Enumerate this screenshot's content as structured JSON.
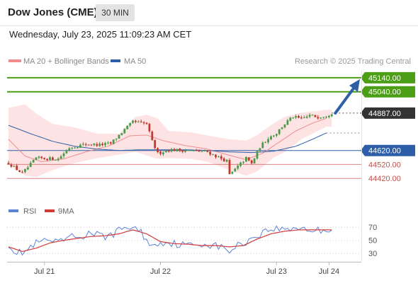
{
  "header": {
    "title": "Dow Jones (CME)",
    "timeframe": "30 MIN",
    "datetime": "Wednesday, July 23, 2025 11:09:23 AM CET"
  },
  "legend": {
    "items": [
      {
        "label": "MA 20 + Bollinger Bands",
        "color": "#f08c8c"
      },
      {
        "label": "MA 50",
        "color": "#2f5ea8"
      }
    ],
    "credit": "Research © 2025 Trading Central"
  },
  "colors": {
    "bull": "#4a9a4a",
    "bear": "#c0392b",
    "target": "#4c9e16",
    "pivot": "#2f5ea8",
    "support": "#e08080",
    "last": "#333333",
    "band_fill": "#fde3e3",
    "rsi": "#5b84d6",
    "rsi_ma": "#d23a3a",
    "arrow": "#2f5ea8"
  },
  "chart_data": [
    {
      "type": "candlestick",
      "title": "Dow Jones (CME)",
      "timeframe": "30 MIN",
      "ylim": [
        44330,
        45190
      ],
      "x_ticks": [
        {
          "label": "Jul 21",
          "index": 13
        },
        {
          "label": "Jul 22",
          "index": 55
        },
        {
          "label": "Jul 23",
          "index": 97
        },
        {
          "label": "Jul 24",
          "index": 116
        }
      ],
      "candles_count": 120,
      "anchors": [
        [
          0,
          44530
        ],
        [
          5,
          44455
        ],
        [
          10,
          44565
        ],
        [
          18,
          44560
        ],
        [
          22,
          44640
        ],
        [
          28,
          44665
        ],
        [
          33,
          44660
        ],
        [
          37,
          44670
        ],
        [
          40,
          44730
        ],
        [
          45,
          44825
        ],
        [
          50,
          44810
        ],
        [
          52,
          44685
        ],
        [
          54,
          44600
        ],
        [
          58,
          44625
        ],
        [
          65,
          44620
        ],
        [
          72,
          44610
        ],
        [
          75,
          44580
        ],
        [
          79,
          44545
        ],
        [
          80,
          44445
        ],
        [
          82,
          44485
        ],
        [
          84,
          44525
        ],
        [
          86,
          44565
        ],
        [
          88,
          44525
        ],
        [
          91,
          44645
        ],
        [
          94,
          44710
        ],
        [
          97,
          44745
        ],
        [
          99,
          44790
        ],
        [
          101,
          44830
        ],
        [
          103,
          44860
        ],
        [
          106,
          44845
        ],
        [
          109,
          44870
        ],
        [
          112,
          44860
        ],
        [
          115,
          44870
        ],
        [
          117,
          44887
        ]
      ],
      "last_index": 117,
      "levels": [
        {
          "value": 45140.0,
          "label": "45140.00",
          "kind": "target"
        },
        {
          "value": 45040.0,
          "label": "45040.00",
          "kind": "target"
        },
        {
          "value": 44887.0,
          "label": "44887.00",
          "kind": "last"
        },
        {
          "value": 44620.0,
          "label": "44620.00",
          "kind": "pivot"
        },
        {
          "value": 44520.0,
          "label": "44520.00",
          "kind": "support"
        },
        {
          "value": 44420.0,
          "label": "44420.00",
          "kind": "support"
        }
      ],
      "ma50_anchors": [
        [
          0,
          44800
        ],
        [
          8,
          44740
        ],
        [
          16,
          44685
        ],
        [
          24,
          44650
        ],
        [
          32,
          44630
        ],
        [
          40,
          44620
        ],
        [
          48,
          44625
        ],
        [
          56,
          44625
        ],
        [
          64,
          44625
        ],
        [
          72,
          44620
        ],
        [
          80,
          44610
        ],
        [
          88,
          44605
        ],
        [
          96,
          44615
        ],
        [
          104,
          44650
        ],
        [
          110,
          44700
        ],
        [
          115,
          44745
        ]
      ],
      "ma20_anchors": [
        [
          0,
          44700
        ],
        [
          6,
          44580
        ],
        [
          12,
          44540
        ],
        [
          20,
          44560
        ],
        [
          28,
          44610
        ],
        [
          36,
          44650
        ],
        [
          44,
          44725
        ],
        [
          50,
          44730
        ],
        [
          56,
          44690
        ],
        [
          64,
          44655
        ],
        [
          72,
          44630
        ],
        [
          80,
          44585
        ],
        [
          86,
          44555
        ],
        [
          92,
          44600
        ],
        [
          98,
          44680
        ],
        [
          104,
          44760
        ],
        [
          110,
          44815
        ],
        [
          115,
          44850
        ]
      ],
      "bb_upper_anchors": [
        [
          0,
          44925
        ],
        [
          6,
          44950
        ],
        [
          10,
          44885
        ],
        [
          16,
          44810
        ],
        [
          24,
          44785
        ],
        [
          32,
          44740
        ],
        [
          40,
          44740
        ],
        [
          46,
          44860
        ],
        [
          50,
          44875
        ],
        [
          54,
          44850
        ],
        [
          58,
          44760
        ],
        [
          66,
          44750
        ],
        [
          74,
          44720
        ],
        [
          80,
          44700
        ],
        [
          86,
          44690
        ],
        [
          90,
          44730
        ],
        [
          96,
          44815
        ],
        [
          100,
          44860
        ],
        [
          106,
          44890
        ],
        [
          115,
          44910
        ]
      ],
      "bb_lower_anchors": [
        [
          0,
          44520
        ],
        [
          6,
          44440
        ],
        [
          10,
          44430
        ],
        [
          16,
          44480
        ],
        [
          24,
          44530
        ],
        [
          32,
          44565
        ],
        [
          40,
          44590
        ],
        [
          46,
          44610
        ],
        [
          50,
          44585
        ],
        [
          54,
          44560
        ],
        [
          58,
          44565
        ],
        [
          66,
          44560
        ],
        [
          72,
          44540
        ],
        [
          80,
          44480
        ],
        [
          86,
          44440
        ],
        [
          90,
          44470
        ],
        [
          96,
          44570
        ],
        [
          100,
          44610
        ],
        [
          106,
          44700
        ],
        [
          115,
          44790
        ]
      ]
    },
    {
      "type": "line",
      "title": "RSI",
      "series": [
        {
          "name": "RSI",
          "color": "#5b84d6"
        },
        {
          "name": "9MA",
          "color": "#d23a3a"
        }
      ],
      "ylim": [
        15,
        80
      ],
      "y_ticks": [
        70,
        50,
        30
      ],
      "rsi_anchors": [
        [
          0,
          45
        ],
        [
          3,
          30
        ],
        [
          6,
          33
        ],
        [
          10,
          45
        ],
        [
          14,
          50
        ],
        [
          18,
          45
        ],
        [
          22,
          55
        ],
        [
          26,
          55
        ],
        [
          30,
          62
        ],
        [
          34,
          55
        ],
        [
          38,
          60
        ],
        [
          42,
          70
        ],
        [
          45,
          70
        ],
        [
          48,
          62
        ],
        [
          52,
          40
        ],
        [
          55,
          48
        ],
        [
          60,
          45
        ],
        [
          65,
          42
        ],
        [
          70,
          45
        ],
        [
          75,
          42
        ],
        [
          80,
          34
        ],
        [
          83,
          42
        ],
        [
          86,
          48
        ],
        [
          90,
          58
        ],
        [
          95,
          68
        ],
        [
          100,
          67
        ],
        [
          105,
          70
        ],
        [
          110,
          65
        ],
        [
          115,
          66
        ],
        [
          117,
          68
        ]
      ],
      "ma_anchors": [
        [
          0,
          40
        ],
        [
          5,
          33
        ],
        [
          10,
          38
        ],
        [
          15,
          46
        ],
        [
          20,
          50
        ],
        [
          25,
          53
        ],
        [
          30,
          56
        ],
        [
          35,
          57
        ],
        [
          40,
          60
        ],
        [
          45,
          66
        ],
        [
          50,
          60
        ],
        [
          55,
          48
        ],
        [
          60,
          45
        ],
        [
          65,
          44
        ],
        [
          70,
          42
        ],
        [
          75,
          42
        ],
        [
          80,
          40
        ],
        [
          85,
          42
        ],
        [
          90,
          52
        ],
        [
          95,
          60
        ],
        [
          100,
          64
        ],
        [
          105,
          66
        ],
        [
          110,
          66
        ],
        [
          115,
          66
        ]
      ]
    }
  ]
}
